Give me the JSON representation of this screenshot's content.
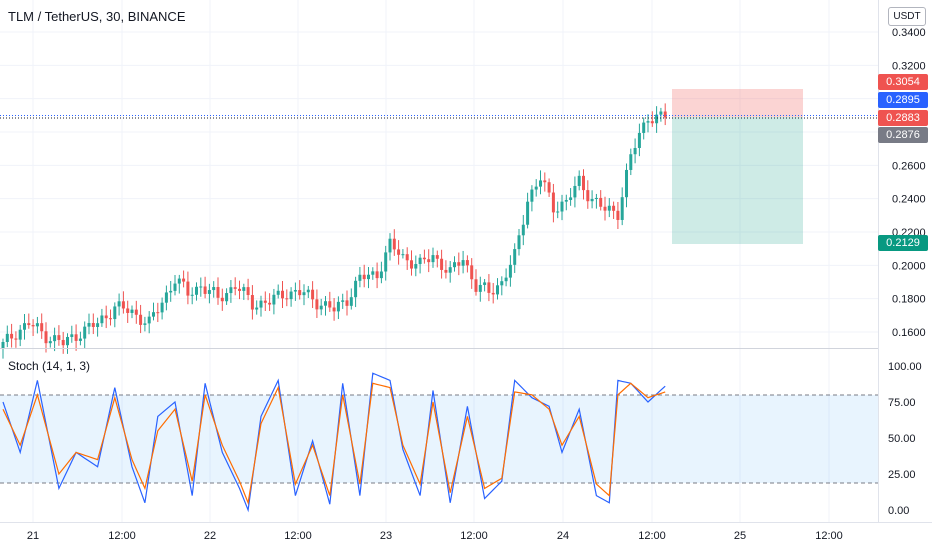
{
  "header": {
    "title": "TLM / TetherUS, 30, BINANCE",
    "unit": "USDT"
  },
  "price_tags": [
    {
      "value": "0.3054",
      "color": "#ef5350"
    },
    {
      "value": "0.2895",
      "color": "#2962ff"
    },
    {
      "value": "0.2883",
      "color": "#ef5350"
    },
    {
      "value": "0.2876",
      "color": "#787b86"
    },
    {
      "value": "0.2129",
      "color": "#089981"
    }
  ],
  "chart_data": [
    {
      "type": "candlestick",
      "ylim": [
        0.15,
        0.35
      ],
      "y_ticks": [
        "0.3400",
        "0.3200",
        "0.3000",
        "0.2800",
        "0.2600",
        "0.2400",
        "0.2200",
        "0.2000",
        "0.1800",
        "0.1600"
      ],
      "y_tick_values": [
        0.34,
        0.32,
        0.3,
        0.28,
        0.26,
        0.24,
        0.22,
        0.2,
        0.18,
        0.16
      ],
      "x_ticks": [
        "21",
        "12:00",
        "22",
        "12:00",
        "23",
        "12:00",
        "24",
        "12:00",
        "25",
        "12:00"
      ],
      "colors": {
        "up": "#26a69a",
        "down": "#ef5350"
      },
      "price_lines": {
        "last": 0.2895,
        "entry": 0.2883
      },
      "position": {
        "entry": 0.2883,
        "stop": 0.3054,
        "target": 0.2129
      },
      "anchors": [
        [
          0,
          0.152
        ],
        [
          3,
          0.16
        ],
        [
          6,
          0.165
        ],
        [
          10,
          0.158
        ],
        [
          14,
          0.153
        ],
        [
          18,
          0.16
        ],
        [
          22,
          0.165
        ],
        [
          26,
          0.175
        ],
        [
          30,
          0.172
        ],
        [
          34,
          0.165
        ],
        [
          37,
          0.178
        ],
        [
          40,
          0.192
        ],
        [
          43,
          0.183
        ],
        [
          46,
          0.188
        ],
        [
          50,
          0.18
        ],
        [
          54,
          0.188
        ],
        [
          58,
          0.177
        ],
        [
          62,
          0.178
        ],
        [
          66,
          0.184
        ],
        [
          70,
          0.183
        ],
        [
          74,
          0.177
        ],
        [
          77,
          0.173
        ],
        [
          80,
          0.18
        ],
        [
          83,
          0.192
        ],
        [
          87,
          0.195
        ],
        [
          90,
          0.212
        ],
        [
          93,
          0.205
        ],
        [
          97,
          0.2
        ],
        [
          100,
          0.206
        ],
        [
          104,
          0.195
        ],
        [
          107,
          0.205
        ],
        [
          110,
          0.187
        ],
        [
          113,
          0.184
        ],
        [
          116,
          0.19
        ],
        [
          119,
          0.205
        ],
        [
          122,
          0.24
        ],
        [
          125,
          0.252
        ],
        [
          128,
          0.235
        ],
        [
          131,
          0.238
        ],
        [
          134,
          0.25
        ],
        [
          137,
          0.24
        ],
        [
          140,
          0.233
        ],
        [
          143,
          0.232
        ],
        [
          146,
          0.265
        ],
        [
          148,
          0.278
        ],
        [
          150,
          0.29
        ],
        [
          152,
          0.288
        ],
        [
          154,
          0.2895
        ]
      ]
    },
    {
      "type": "line",
      "title": "Stoch (14, 1, 3)",
      "ylim": [
        0,
        100
      ],
      "y_ticks": [
        "100.00",
        "75.00",
        "50.00",
        "25.00",
        "0.00"
      ],
      "y_tick_values": [
        100,
        75,
        50,
        25,
        0
      ],
      "bands": {
        "upper": 80,
        "lower": 20
      },
      "series": [
        {
          "color": "#2962ff",
          "anchors": [
            [
              0,
              75
            ],
            [
              4,
              40
            ],
            [
              8,
              90
            ],
            [
              13,
              15
            ],
            [
              17,
              40
            ],
            [
              22,
              30
            ],
            [
              26,
              85
            ],
            [
              30,
              30
            ],
            [
              33,
              5
            ],
            [
              36,
              65
            ],
            [
              40,
              75
            ],
            [
              44,
              10
            ],
            [
              47,
              88
            ],
            [
              51,
              40
            ],
            [
              55,
              15
            ],
            [
              57,
              0
            ],
            [
              60,
              65
            ],
            [
              64,
              90
            ],
            [
              68,
              10
            ],
            [
              72,
              48
            ],
            [
              76,
              4
            ],
            [
              79,
              88
            ],
            [
              83,
              10
            ],
            [
              86,
              95
            ],
            [
              90,
              90
            ],
            [
              93,
              42
            ],
            [
              97,
              10
            ],
            [
              100,
              83
            ],
            [
              104,
              5
            ],
            [
              108,
              72
            ],
            [
              112,
              8
            ],
            [
              116,
              20
            ],
            [
              119,
              90
            ],
            [
              123,
              78
            ],
            [
              127,
              72
            ],
            [
              130,
              40
            ],
            [
              134,
              70
            ],
            [
              138,
              10
            ],
            [
              141,
              5
            ],
            [
              143,
              90
            ],
            [
              146,
              88
            ],
            [
              150,
              75
            ],
            [
              154,
              86
            ]
          ]
        },
        {
          "color": "#ff6d00",
          "anchors": [
            [
              0,
              70
            ],
            [
              4,
              45
            ],
            [
              8,
              80
            ],
            [
              13,
              25
            ],
            [
              17,
              40
            ],
            [
              22,
              35
            ],
            [
              26,
              78
            ],
            [
              30,
              35
            ],
            [
              33,
              15
            ],
            [
              36,
              55
            ],
            [
              40,
              70
            ],
            [
              44,
              20
            ],
            [
              47,
              80
            ],
            [
              51,
              45
            ],
            [
              55,
              20
            ],
            [
              57,
              5
            ],
            [
              60,
              60
            ],
            [
              64,
              85
            ],
            [
              68,
              18
            ],
            [
              72,
              45
            ],
            [
              76,
              10
            ],
            [
              79,
              80
            ],
            [
              83,
              18
            ],
            [
              86,
              88
            ],
            [
              90,
              85
            ],
            [
              93,
              45
            ],
            [
              97,
              18
            ],
            [
              100,
              75
            ],
            [
              104,
              12
            ],
            [
              108,
              65
            ],
            [
              112,
              15
            ],
            [
              116,
              22
            ],
            [
              119,
              82
            ],
            [
              123,
              80
            ],
            [
              127,
              70
            ],
            [
              130,
              45
            ],
            [
              134,
              65
            ],
            [
              138,
              18
            ],
            [
              141,
              10
            ],
            [
              143,
              80
            ],
            [
              146,
              88
            ],
            [
              150,
              78
            ],
            [
              154,
              82
            ]
          ]
        }
      ]
    }
  ]
}
